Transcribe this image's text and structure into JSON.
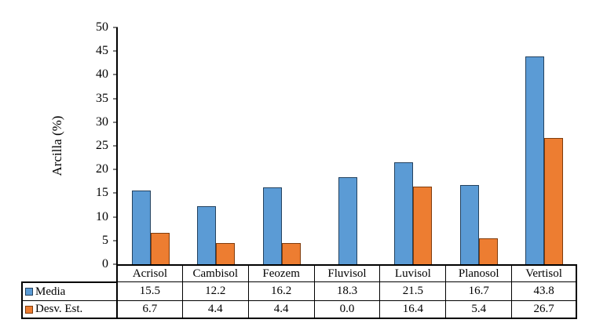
{
  "chart_data": {
    "type": "bar",
    "title": "",
    "ylabel": "Arcilla (%)",
    "xlabel": "",
    "ylim": [
      0,
      50
    ],
    "ytick_step": 5,
    "grid": false,
    "legend_position": "table-left",
    "categories": [
      "Acrisol",
      "Cambisol",
      "Feozem",
      "Fluvisol",
      "Luvisol",
      "Planosol",
      "Vertisol"
    ],
    "series": [
      {
        "name": "Media",
        "values": [
          15.5,
          12.2,
          16.2,
          18.3,
          21.5,
          16.7,
          43.8
        ],
        "color": "#5B9BD5",
        "border_color": "#24425F"
      },
      {
        "name": "Desv. Est.",
        "values": [
          6.7,
          4.4,
          4.4,
          0.0,
          16.4,
          5.4,
          26.7
        ],
        "color": "#ED7D31",
        "border_color": "#803C0C"
      }
    ]
  }
}
